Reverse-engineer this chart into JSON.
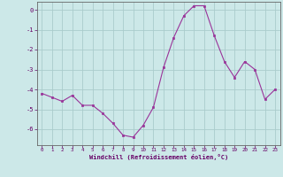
{
  "x": [
    0,
    1,
    2,
    3,
    4,
    5,
    6,
    7,
    8,
    9,
    10,
    11,
    12,
    13,
    14,
    15,
    16,
    17,
    18,
    19,
    20,
    21,
    22,
    23
  ],
  "y": [
    -4.2,
    -4.4,
    -4.6,
    -4.3,
    -4.8,
    -4.8,
    -5.2,
    -5.7,
    -6.3,
    -6.4,
    -5.8,
    -4.9,
    -2.9,
    -1.4,
    -0.3,
    0.2,
    0.2,
    -1.3,
    -2.6,
    -3.4,
    -2.6,
    -3.0,
    -4.5,
    -4.0
  ],
  "line_color": "#993399",
  "marker_color": "#993399",
  "bg_color": "#cce8e8",
  "grid_color": "#aacccc",
  "xlabel": "Windchill (Refroidissement éolien,°C)",
  "xlabel_color": "#660066",
  "tick_color": "#660066",
  "axis_color": "#666666",
  "ylim": [
    -6.8,
    0.4
  ],
  "xlim": [
    -0.5,
    23.5
  ],
  "yticks": [
    0,
    -1,
    -2,
    -3,
    -4,
    -5,
    -6
  ],
  "xticks": [
    0,
    1,
    2,
    3,
    4,
    5,
    6,
    7,
    8,
    9,
    10,
    11,
    12,
    13,
    14,
    15,
    16,
    17,
    18,
    19,
    20,
    21,
    22,
    23
  ],
  "figsize": [
    3.2,
    2.0
  ],
  "dpi": 100
}
